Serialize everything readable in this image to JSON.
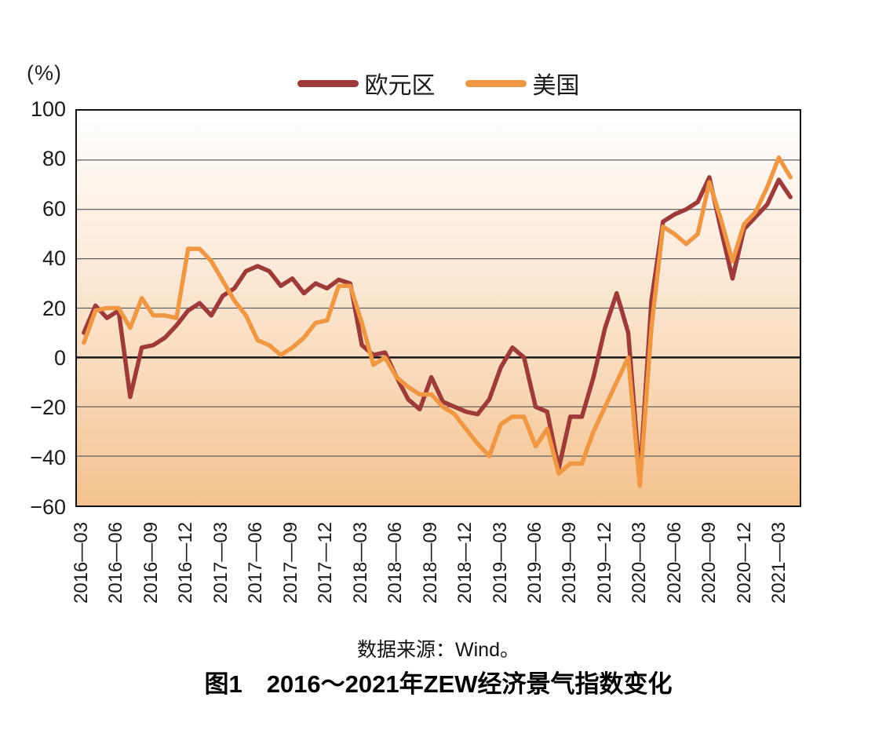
{
  "figure": {
    "caption_title": "图1　2016～2021年ZEW经济景气指数变化",
    "source_note": "数据来源：Wind。"
  },
  "chart_data": {
    "type": "line",
    "title": "图1 2016～2021年ZEW经济景气指数变化",
    "source_note": "数据来源：Wind。",
    "legend_position": "top",
    "grid": true,
    "y_axis": {
      "unit_label": "(%)",
      "min": -60,
      "max": 100,
      "tick_values": [
        100,
        80,
        60,
        40,
        20,
        0,
        -20,
        -40,
        -60
      ],
      "tick_labels": [
        "100",
        "80",
        "60",
        "40",
        "20",
        "0",
        "−20",
        "−40",
        "−60"
      ],
      "grid_values": [
        80,
        60,
        40,
        20,
        -20,
        -40
      ],
      "zero_line": 0
    },
    "x_tick_labels": [
      "2016—03",
      "2016—06",
      "2016—09",
      "2016—12",
      "2017—03",
      "2017—06",
      "2017—09",
      "2017—12",
      "2018—03",
      "2018—06",
      "2018—09",
      "2018—12",
      "2019—03",
      "2019—06",
      "2019—09",
      "2019—12",
      "2020—03",
      "2020—06",
      "2020—09",
      "2020—12",
      "2021—03"
    ],
    "x": [
      "2016-03",
      "2016-04",
      "2016-05",
      "2016-06",
      "2016-07",
      "2016-08",
      "2016-09",
      "2016-10",
      "2016-11",
      "2016-12",
      "2017-01",
      "2017-02",
      "2017-03",
      "2017-04",
      "2017-05",
      "2017-06",
      "2017-07",
      "2017-08",
      "2017-09",
      "2017-10",
      "2017-11",
      "2017-12",
      "2018-01",
      "2018-02",
      "2018-03",
      "2018-04",
      "2018-05",
      "2018-06",
      "2018-07",
      "2018-08",
      "2018-09",
      "2018-10",
      "2018-11",
      "2018-12",
      "2019-01",
      "2019-02",
      "2019-03",
      "2019-04",
      "2019-05",
      "2019-06",
      "2019-07",
      "2019-08",
      "2019-09",
      "2019-10",
      "2019-11",
      "2019-12",
      "2020-01",
      "2020-02",
      "2020-03",
      "2020-04",
      "2020-05",
      "2020-06",
      "2020-07",
      "2020-08",
      "2020-09",
      "2020-10",
      "2020-11",
      "2020-12",
      "2021-01",
      "2021-02",
      "2021-03",
      "2021-04"
    ],
    "series": [
      {
        "name": "欧元区",
        "color": "#9e3a38",
        "values": [
          10,
          21,
          16,
          19,
          -16,
          4,
          5,
          8,
          13,
          19,
          22,
          17,
          25,
          28,
          35,
          37,
          35,
          29,
          32,
          26,
          30,
          28,
          31.5,
          30,
          5,
          1,
          2,
          -8,
          -17,
          -21,
          -8,
          -18,
          -20,
          -22,
          -23,
          -17,
          -4,
          4,
          0,
          -20,
          -22,
          -45,
          -24,
          -24,
          -8,
          12,
          26,
          10,
          -49,
          23,
          55,
          58,
          60,
          63,
          73,
          52,
          32,
          52,
          57,
          62,
          72,
          65
        ]
      },
      {
        "name": "美国",
        "color": "#ef9743",
        "values": [
          6,
          19,
          20,
          20,
          12,
          24,
          17,
          17,
          16,
          44,
          44,
          39,
          31,
          23,
          17,
          7,
          5,
          1,
          4,
          8,
          14,
          15,
          29,
          29,
          14,
          -3,
          0,
          -8,
          -12,
          -15,
          -15,
          -20,
          -23,
          -29,
          -35,
          -40,
          -27,
          -24,
          -24,
          -36,
          -29,
          -47,
          -43,
          -43,
          -30,
          -20,
          -10,
          0,
          -52,
          12,
          53,
          50,
          46,
          50,
          71,
          56,
          39,
          54,
          59,
          69,
          81,
          73
        ]
      }
    ],
    "plot_background": {
      "stops": [
        {
          "pos": 0,
          "color": "#ffffff"
        },
        {
          "pos": 0.22,
          "color": "#fdf3e9"
        },
        {
          "pos": 0.625,
          "color": "#f9dcc0"
        },
        {
          "pos": 1,
          "color": "#f4c28e"
        }
      ]
    },
    "style": {
      "grid_color": "#5f5f5f",
      "zero_line_color": "#141414",
      "frame_color": "#111111",
      "line_width": 5.5
    }
  }
}
